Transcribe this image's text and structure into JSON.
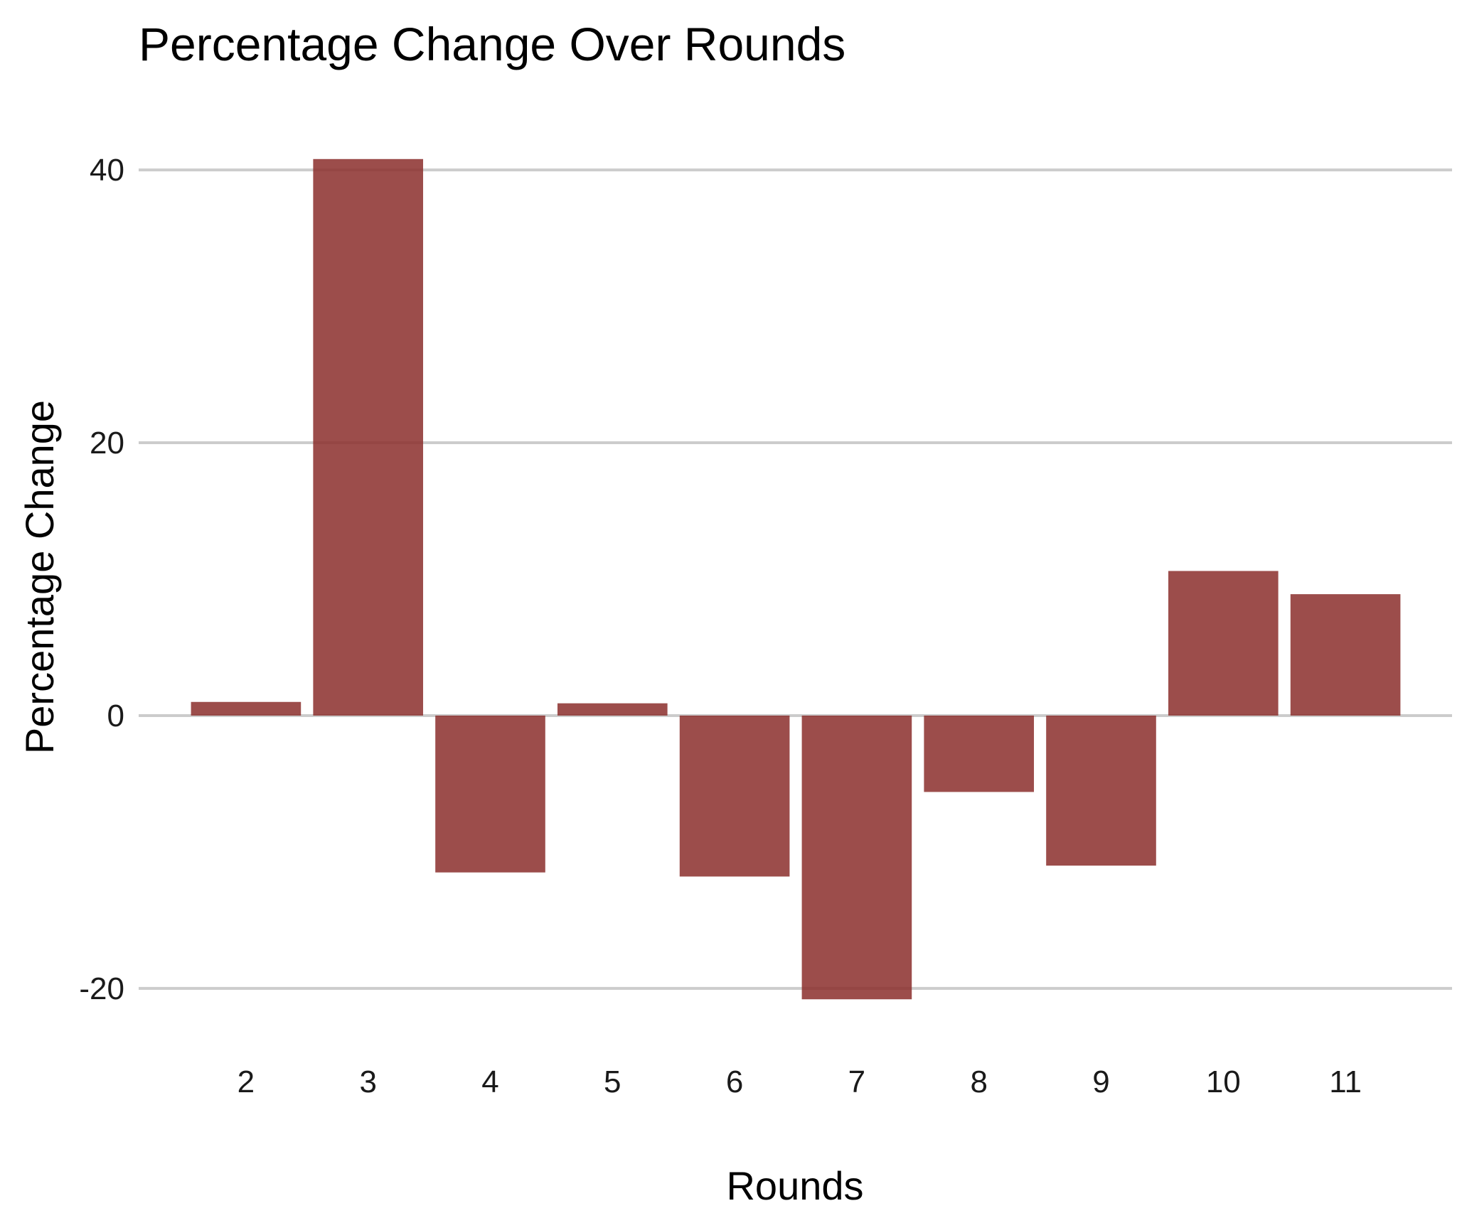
{
  "chart_data": {
    "type": "bar",
    "title": "Percentage Change Over Rounds",
    "xlabel": "Rounds",
    "ylabel": "Percentage Change",
    "categories": [
      "2",
      "3",
      "4",
      "5",
      "6",
      "7",
      "8",
      "9",
      "10",
      "11"
    ],
    "values": [
      1.0,
      40.8,
      -11.5,
      0.9,
      -11.8,
      -20.8,
      -5.6,
      -11.0,
      10.6,
      8.9
    ],
    "ylim": [
      -22.3,
      42.3
    ],
    "yticks": [
      -20,
      0,
      20,
      40
    ],
    "ytick_labels": [
      "-20",
      "0",
      "20",
      "40"
    ],
    "grid": true,
    "legend": "none",
    "bar_color": "#8b2e2b",
    "bar_opacity": 0.85,
    "grid_color": "#cccccc"
  }
}
